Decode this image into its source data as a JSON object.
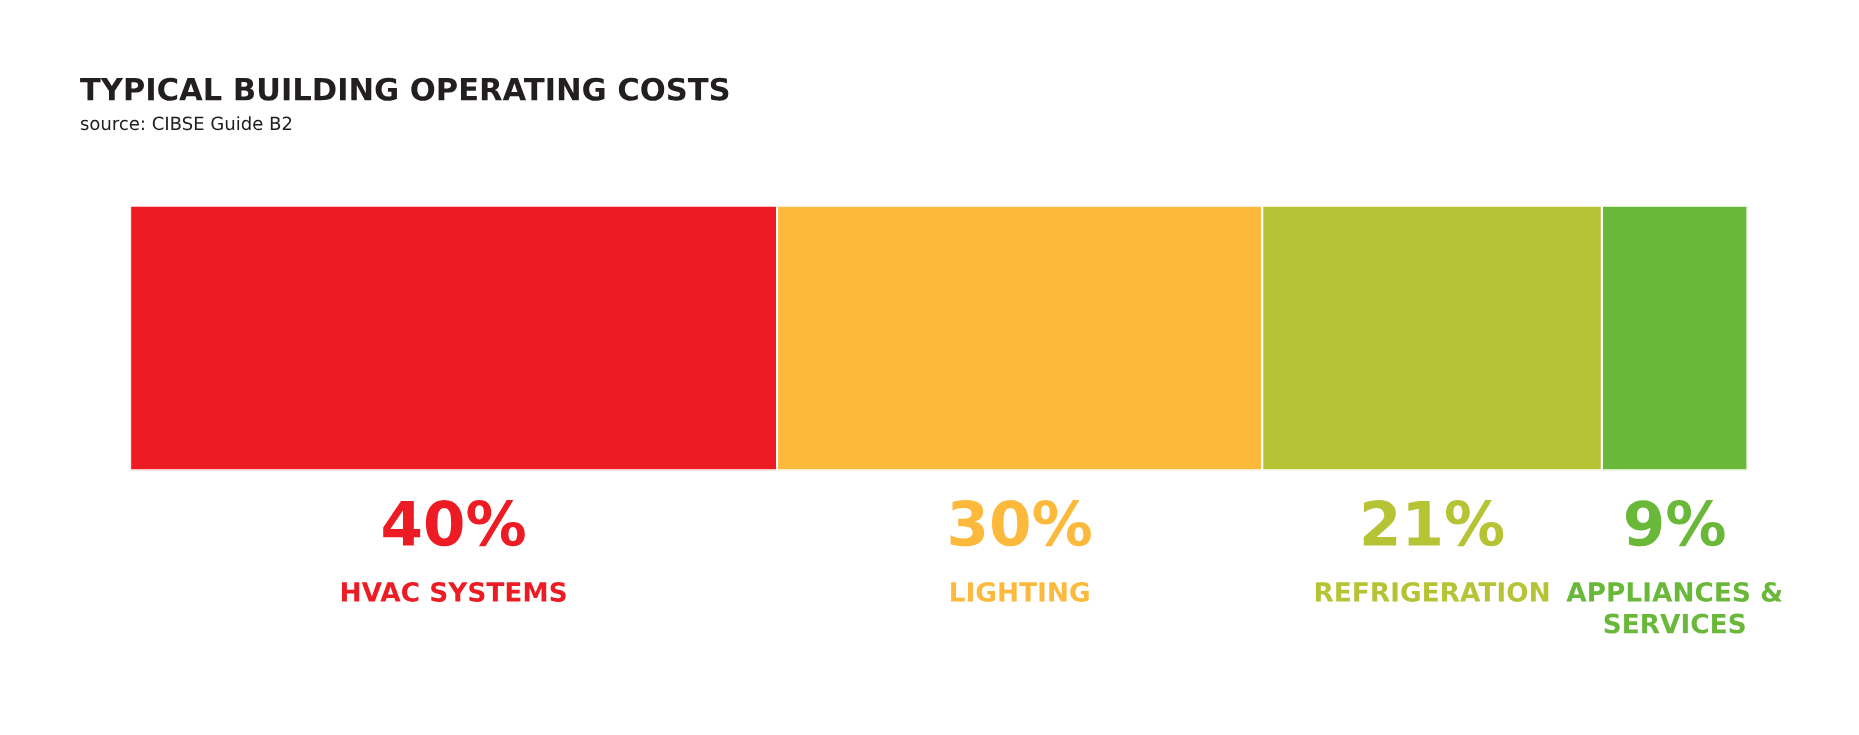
{
  "chart_data": {
    "type": "bar",
    "orientation": "horizontal",
    "stacked": true,
    "title": "TYPICAL BUILDING OPERATING COSTS",
    "subtitle": "source: CIBSE Guide B2",
    "categories": [
      null
    ],
    "series": [
      {
        "name": "HVAC SYSTEMS",
        "color": "#ed1c24",
        "values": [
          40
        ],
        "value_labels": [
          "40%"
        ]
      },
      {
        "name": "LIGHTING",
        "color": "#fdb93c",
        "values": [
          30
        ],
        "value_labels": [
          "30%"
        ]
      },
      {
        "name": "REFRIGERATION",
        "color": "#b5c334",
        "values": [
          21
        ],
        "value_labels": [
          "21%"
        ]
      },
      {
        "name": "APPLIANCES &\nSERVICES",
        "color": "#6ab83a",
        "values": [
          9
        ],
        "value_labels": [
          "9%"
        ]
      }
    ]
  }
}
